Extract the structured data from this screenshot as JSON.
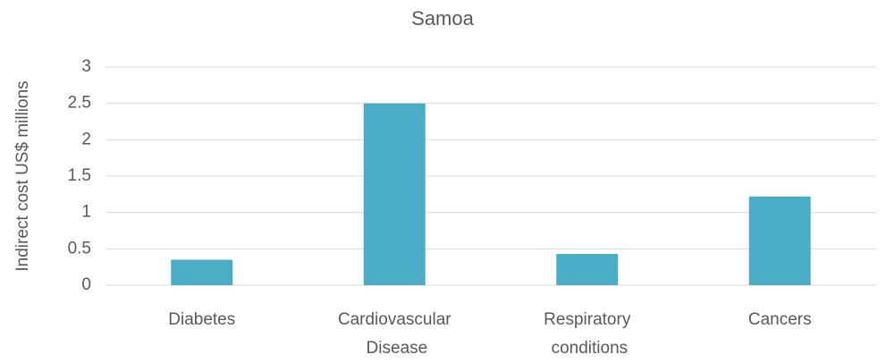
{
  "chart_data": {
    "type": "bar",
    "title": "Samoa",
    "ylabel": "Indirect cost US$ millions",
    "categories": [
      "Diabetes",
      "Cardiovascular Disease",
      "Respiratory conditions",
      "Cancers"
    ],
    "values": [
      0.35,
      2.5,
      0.43,
      1.22
    ],
    "color": "#4bacc6",
    "ylim": [
      0,
      3
    ],
    "yticks": [
      0,
      0.5,
      1,
      1.5,
      2,
      2.5,
      3
    ],
    "grid": true
  }
}
